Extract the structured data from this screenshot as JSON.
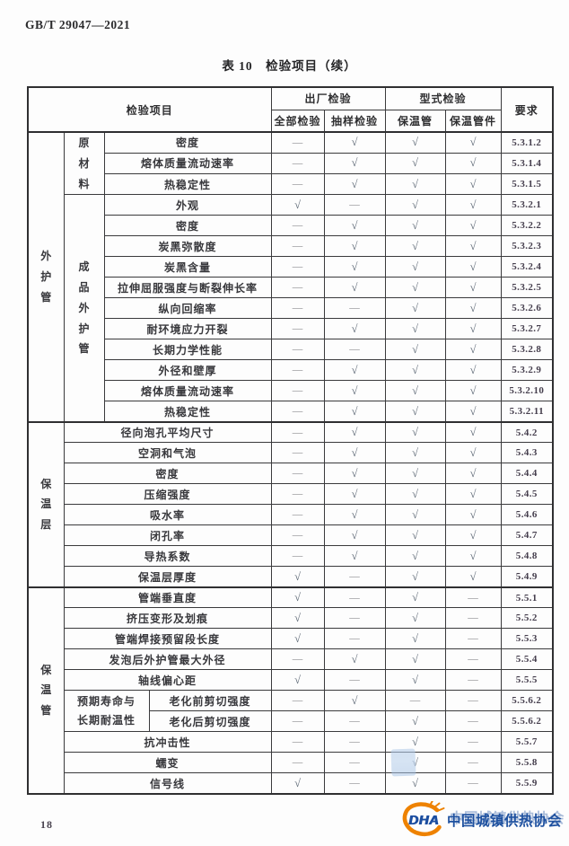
{
  "page": {
    "standard_code": "GB/T 29047—2021",
    "page_number": "18"
  },
  "table": {
    "title": "表 10　检验项目（续）",
    "header": {
      "item": "检验项目",
      "factory": "出厂检验",
      "factory_sub": [
        "全部检验",
        "抽样检验"
      ],
      "type": "型式检验",
      "type_sub": [
        "保温管",
        "保温管件"
      ],
      "requirement": "要求"
    },
    "marks": {
      "check": "√",
      "dash": "—"
    },
    "sections": [
      {
        "group": "外护管",
        "blocks": [
          {
            "sub": "原材料",
            "wide": false,
            "rows": [
              [
                "密度",
                "d",
                "c",
                "c",
                "c",
                "5.3.1.2"
              ],
              [
                "熔体质量流动速率",
                "d",
                "c",
                "c",
                "c",
                "5.3.1.4"
              ],
              [
                "热稳定性",
                "d",
                "c",
                "c",
                "c",
                "5.3.1.5"
              ]
            ]
          },
          {
            "sub": "成品外护管",
            "wide": false,
            "rows": [
              [
                "外观",
                "c",
                "d",
                "c",
                "c",
                "5.3.2.1"
              ],
              [
                "密度",
                "d",
                "c",
                "c",
                "c",
                "5.3.2.2"
              ],
              [
                "炭黑弥散度",
                "d",
                "c",
                "c",
                "c",
                "5.3.2.3"
              ],
              [
                "炭黑含量",
                "d",
                "c",
                "c",
                "c",
                "5.3.2.4"
              ],
              [
                "拉伸屈服强度与断裂伸长率",
                "d",
                "c",
                "c",
                "c",
                "5.3.2.5"
              ],
              [
                "纵向回缩率",
                "d",
                "d",
                "c",
                "c",
                "5.3.2.6"
              ],
              [
                "耐环境应力开裂",
                "d",
                "c",
                "c",
                "c",
                "5.3.2.7"
              ],
              [
                "长期力学性能",
                "d",
                "d",
                "c",
                "c",
                "5.3.2.8"
              ],
              [
                "外径和壁厚",
                "d",
                "c",
                "c",
                "c",
                "5.3.2.9"
              ],
              [
                "熔体质量流动速率",
                "d",
                "c",
                "c",
                "c",
                "5.3.2.10"
              ],
              [
                "热稳定性",
                "d",
                "c",
                "c",
                "c",
                "5.3.2.11"
              ]
            ]
          }
        ]
      },
      {
        "group": "保温层",
        "blocks": [
          {
            "sub": null,
            "wide": false,
            "rows": [
              [
                "径向泡孔平均尺寸",
                "d",
                "c",
                "c",
                "c",
                "5.4.2"
              ],
              [
                "空洞和气泡",
                "d",
                "c",
                "c",
                "c",
                "5.4.3"
              ],
              [
                "密度",
                "d",
                "c",
                "c",
                "c",
                "5.4.4"
              ],
              [
                "压缩强度",
                "d",
                "c",
                "c",
                "c",
                "5.4.5"
              ],
              [
                "吸水率",
                "d",
                "c",
                "c",
                "c",
                "5.4.6"
              ],
              [
                "闭孔率",
                "d",
                "c",
                "c",
                "c",
                "5.4.7"
              ],
              [
                "导热系数",
                "d",
                "c",
                "c",
                "c",
                "5.4.8"
              ],
              [
                "保温层厚度",
                "c",
                "d",
                "c",
                "c",
                "5.4.9"
              ]
            ]
          }
        ]
      },
      {
        "group": "保温管",
        "blocks": [
          {
            "sub": null,
            "wide": false,
            "rows": [
              [
                "管端垂直度",
                "c",
                "d",
                "c",
                "d",
                "5.5.1"
              ],
              [
                "挤压变形及划痕",
                "c",
                "d",
                "c",
                "d",
                "5.5.2"
              ],
              [
                "管端焊接预留段长度",
                "c",
                "d",
                "c",
                "d",
                "5.5.3"
              ],
              [
                "发泡后外护管最大外径",
                "d",
                "c",
                "c",
                "d",
                "5.5.4"
              ],
              [
                "轴线偏心距",
                "c",
                "d",
                "c",
                "d",
                "5.5.5"
              ]
            ]
          },
          {
            "sub": "预期寿命与长期耐温性",
            "wide": true,
            "rows": [
              [
                "老化前剪切强度",
                "d",
                "c",
                "d",
                "d",
                "5.5.6.2"
              ],
              [
                "老化后剪切强度",
                "d",
                "d",
                "c",
                "d",
                "5.5.6.2"
              ]
            ]
          },
          {
            "sub": null,
            "wide": false,
            "rows": [
              [
                "抗冲击性",
                "d",
                "d",
                "c",
                "d",
                "5.5.7"
              ],
              [
                "蠕变",
                "d",
                "d",
                "c",
                "d",
                "5.5.8"
              ],
              [
                "信号线",
                "c",
                "d",
                "c",
                "d",
                "5.5.9"
              ]
            ]
          }
        ]
      }
    ]
  },
  "footer": {
    "logo_acronym": "DHA",
    "logo_text": "中国城镇供热协会",
    "logo_blue": "#1d509f",
    "logo_orange": "#ee8200"
  }
}
